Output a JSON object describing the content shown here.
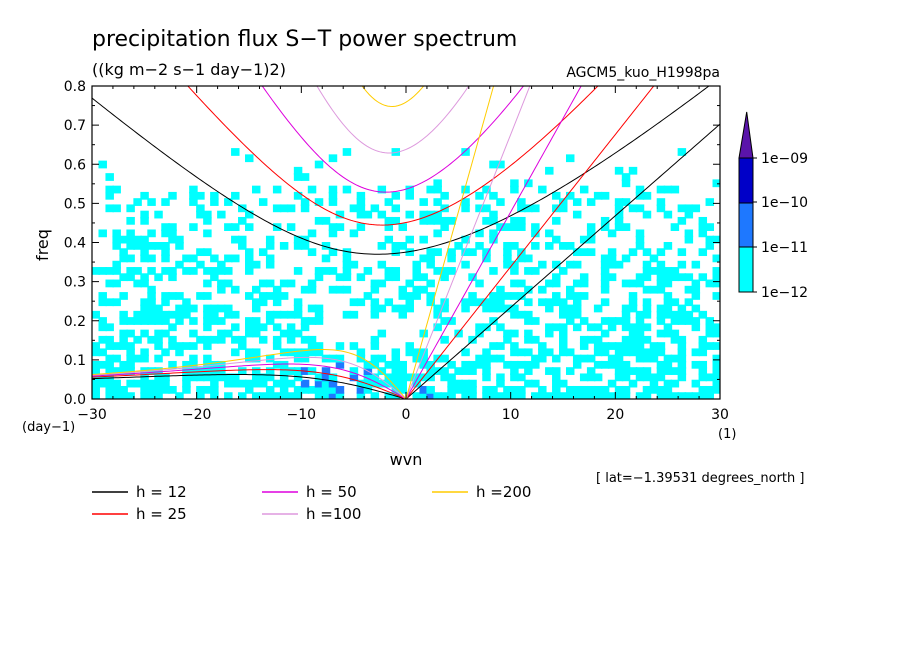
{
  "chart_data": {
    "type": "contour",
    "title": "precipitation flux S−T power spectrum",
    "units": "((kg m−2 s−1 day−1)2)",
    "experiment": "AGCM5_kuo_H1998pa",
    "xlabel": "wvn",
    "ylabel": "freq",
    "x_unit": "(1)",
    "y_unit": "(day−1)",
    "xlim": [
      -30,
      30
    ],
    "ylim": [
      0,
      0.8
    ],
    "x_ticks": [
      -30,
      -20,
      -10,
      0,
      10,
      20,
      30
    ],
    "y_ticks": [
      0.0,
      0.1,
      0.2,
      0.3,
      0.4,
      0.5,
      0.6,
      0.7,
      0.8
    ],
    "x_tick_labels": [
      "−30",
      "−20",
      "−10",
      "0",
      "10",
      "20",
      "30"
    ],
    "y_tick_labels": [
      "0.0",
      "0.1",
      "0.2",
      "0.3",
      "0.4",
      "0.5",
      "0.6",
      "0.7",
      "0.8"
    ],
    "annotation": "[ lat=−1.39531 degrees_north ]",
    "colorbar": {
      "labels": [
        "1e−12",
        "1e−11",
        "1e−10",
        "1e−09"
      ],
      "colors": [
        "#00ffff",
        "#1e78ff",
        "#0000c8",
        "#5a14aa"
      ]
    },
    "dispersion_curves": [
      {
        "name": "h = 12",
        "h": 12,
        "color": "#000000"
      },
      {
        "name": "h = 25",
        "h": 25,
        "color": "#ff0000"
      },
      {
        "name": "h = 50",
        "h": 50,
        "color": "#dd00dd"
      },
      {
        "name": "h =100",
        "h": 100,
        "color": "#dd99dd"
      },
      {
        "name": "h =200",
        "h": 200,
        "color": "#ffcc00"
      }
    ]
  }
}
